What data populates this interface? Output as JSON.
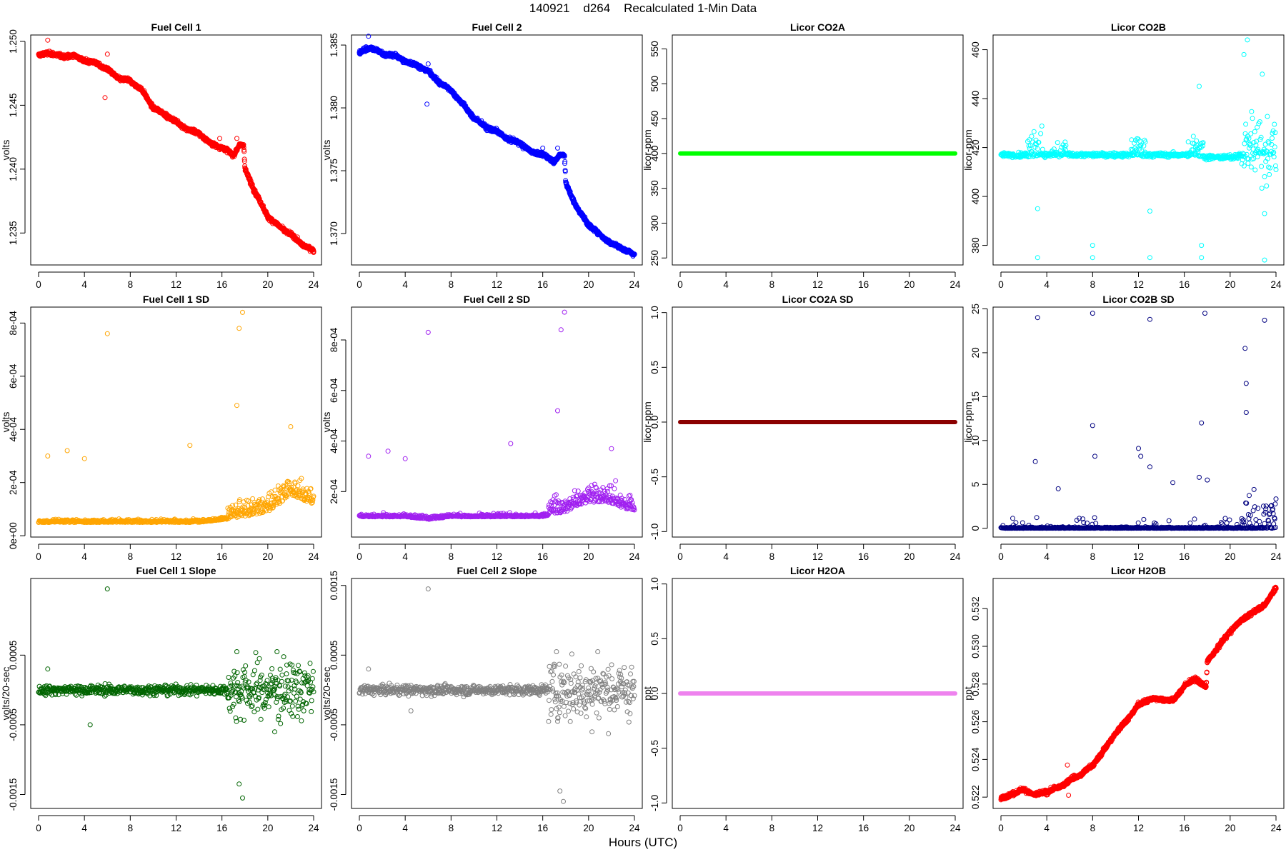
{
  "figure": {
    "title": "140921    d264    Recalculated 1-Min Data",
    "xlabel": "Hours (UTC)"
  },
  "chart_data": [
    {
      "type": "scatter",
      "title": "Fuel Cell 1",
      "xlabel": "",
      "ylabel": "volts",
      "xlim": [
        0,
        24
      ],
      "ylim": [
        1.2325,
        1.2505
      ],
      "xticks": [
        0,
        4,
        8,
        12,
        16,
        20,
        24
      ],
      "yticks": [
        "1.235",
        "1.240",
        "1.245",
        "1.250"
      ],
      "ytick_values": [
        1.235,
        1.24,
        1.245,
        1.25
      ],
      "color": "#ff0000",
      "series": [
        {
          "x": [
            0,
            1,
            2,
            3,
            4,
            5,
            6,
            7,
            8,
            9,
            10,
            11,
            12,
            13,
            14,
            15,
            16,
            17,
            17.5,
            17.9,
            18,
            19,
            20,
            21,
            22,
            23,
            24
          ],
          "y": [
            1.2489,
            1.2491,
            1.2488,
            1.2489,
            1.2485,
            1.2483,
            1.2478,
            1.2471,
            1.2469,
            1.2462,
            1.2448,
            1.2443,
            1.2437,
            1.2431,
            1.2428,
            1.242,
            1.2417,
            1.2411,
            1.2419,
            1.2418,
            1.24,
            1.238,
            1.2363,
            1.2355,
            1.2349,
            1.2341,
            1.2336
          ]
        }
      ],
      "outliers": [
        [
          0.8,
          1.2501
        ],
        [
          6,
          1.249
        ],
        [
          5.8,
          1.2456
        ],
        [
          15.8,
          1.2424
        ],
        [
          17.3,
          1.2424
        ]
      ]
    },
    {
      "type": "scatter",
      "title": "Fuel Cell 2",
      "xlabel": "",
      "ylabel": "volts",
      "xlim": [
        0,
        24
      ],
      "ylim": [
        1.3675,
        1.3858
      ],
      "xticks": [
        0,
        4,
        8,
        12,
        16,
        20,
        24
      ],
      "yticks": [
        "1.370",
        "1.375",
        "1.380",
        "1.385"
      ],
      "ytick_values": [
        1.37,
        1.375,
        1.38,
        1.385
      ],
      "color": "#0000ff",
      "series": [
        {
          "x": [
            0,
            1,
            2,
            3,
            4,
            5,
            6,
            7,
            8,
            9,
            10,
            11,
            12,
            13,
            14,
            15,
            16,
            17,
            17.5,
            17.9,
            18,
            19,
            20,
            21,
            22,
            23,
            24
          ],
          "y": [
            1.3844,
            1.3848,
            1.3843,
            1.3842,
            1.3837,
            1.3834,
            1.3829,
            1.382,
            1.3814,
            1.3803,
            1.3792,
            1.3785,
            1.3781,
            1.3775,
            1.3772,
            1.3765,
            1.3763,
            1.3757,
            1.3763,
            1.3762,
            1.374,
            1.372,
            1.3707,
            1.3699,
            1.3692,
            1.3688,
            1.3683
          ]
        }
      ],
      "outliers": [
        [
          0.8,
          1.3857
        ],
        [
          6,
          1.3835
        ],
        [
          5.9,
          1.3803
        ],
        [
          16,
          1.3768
        ],
        [
          17.3,
          1.3768
        ]
      ]
    },
    {
      "type": "scatter",
      "title": "Licor CO2A",
      "xlabel": "",
      "ylabel": "licor-ppm",
      "xlim": [
        0,
        24
      ],
      "ylim": [
        240,
        570
      ],
      "xticks": [
        0,
        4,
        8,
        12,
        16,
        20,
        24
      ],
      "yticks": [
        "250",
        "300",
        "350",
        "400",
        "450",
        "500",
        "550"
      ],
      "ytick_values": [
        250,
        300,
        350,
        400,
        450,
        500,
        550
      ],
      "color": "#00ff00",
      "series": [
        {
          "x": [
            0,
            24
          ],
          "y": [
            400,
            400
          ]
        }
      ]
    },
    {
      "type": "scatter",
      "title": "Licor CO2B",
      "xlabel": "",
      "ylabel": "licor-ppm",
      "xlim": [
        0,
        24
      ],
      "ylim": [
        372,
        466
      ],
      "xticks": [
        0,
        4,
        8,
        12,
        16,
        20,
        24
      ],
      "yticks": [
        "380",
        "400",
        "420",
        "440",
        "460"
      ],
      "ytick_values": [
        380,
        400,
        420,
        440,
        460
      ],
      "color": "#00ffff",
      "series": [
        {
          "x": [
            0,
            1,
            2,
            3,
            4,
            5,
            6,
            7,
            8,
            9,
            10,
            11,
            12,
            13,
            14,
            15,
            16,
            17,
            18,
            19,
            20,
            21,
            22,
            23,
            24
          ],
          "y": [
            417,
            417,
            417,
            417,
            417,
            417,
            417,
            417,
            417,
            417,
            417,
            417,
            417,
            417,
            417,
            417,
            417,
            417,
            416,
            416,
            416,
            417,
            418,
            418,
            418
          ]
        }
      ],
      "bursts": [
        [
          3,
          425
        ],
        [
          5,
          422
        ],
        [
          12,
          424
        ],
        [
          17,
          423
        ],
        [
          22,
          428
        ]
      ],
      "outliers": [
        [
          3.2,
          395
        ],
        [
          3.2,
          375
        ],
        [
          8,
          380
        ],
        [
          8,
          375
        ],
        [
          13,
          394
        ],
        [
          13,
          375
        ],
        [
          17.5,
          380
        ],
        [
          17.5,
          375
        ],
        [
          21.5,
          464
        ],
        [
          23,
          393
        ],
        [
          23,
          374
        ],
        [
          17.3,
          445
        ],
        [
          21.2,
          458
        ],
        [
          22.8,
          450
        ]
      ]
    },
    {
      "type": "scatter",
      "title": "Fuel Cell 1 SD",
      "xlabel": "",
      "ylabel": "volts",
      "xlim": [
        0,
        24
      ],
      "ylim": [
        -5e-06,
        0.00086
      ],
      "xticks": [
        0,
        4,
        8,
        12,
        16,
        20,
        24
      ],
      "yticks": [
        "0e+00",
        "2e-04",
        "4e-04",
        "6e-04",
        "8e-04"
      ],
      "ytick_values": [
        0,
        0.0002,
        0.0004,
        0.0006,
        0.0008
      ],
      "color": "#ffa500",
      "series": [
        {
          "x": [
            0,
            2,
            4,
            6,
            8,
            10,
            12,
            14,
            16,
            18,
            20,
            22,
            24
          ],
          "y": [
            5e-05,
            5e-05,
            5e-05,
            5e-05,
            5e-05,
            5e-05,
            5e-05,
            5e-05,
            6e-05,
            7e-05,
            9e-05,
            0.00015,
            0.00012
          ]
        }
      ],
      "outliers": [
        [
          6,
          0.00076
        ],
        [
          17.5,
          0.00078
        ],
        [
          17.8,
          0.00084
        ],
        [
          17.3,
          0.00049
        ],
        [
          0.8,
          0.0003
        ],
        [
          2.5,
          0.00032
        ],
        [
          4,
          0.00029
        ],
        [
          13.2,
          0.00034
        ],
        [
          22,
          0.00041
        ]
      ]
    },
    {
      "type": "scatter",
      "title": "Fuel Cell 2 SD",
      "xlabel": "",
      "ylabel": "volts",
      "xlim": [
        0,
        24
      ],
      "ylim": [
        2e-05,
        0.00093
      ],
      "xticks": [
        0,
        4,
        8,
        12,
        16,
        20,
        24
      ],
      "yticks": [
        "2e-04",
        "4e-04",
        "6e-04",
        "8e-04"
      ],
      "ytick_values": [
        0.0002,
        0.0004,
        0.0006,
        0.0008
      ],
      "color": "#a020f0",
      "series": [
        {
          "x": [
            0,
            2,
            4,
            6,
            8,
            10,
            12,
            14,
            16,
            18,
            20,
            22,
            24
          ],
          "y": [
            0.0001,
            0.0001,
            0.0001,
            9e-05,
            0.0001,
            0.0001,
            0.0001,
            0.0001,
            0.0001,
            0.00012,
            0.00016,
            0.00015,
            0.00012
          ]
        }
      ],
      "outliers": [
        [
          6,
          0.00083
        ],
        [
          17.6,
          0.00084
        ],
        [
          17.9,
          0.00091
        ],
        [
          17.3,
          0.00052
        ],
        [
          0.8,
          0.00034
        ],
        [
          2.5,
          0.00036
        ],
        [
          4,
          0.00033
        ],
        [
          13.2,
          0.00039
        ],
        [
          22,
          0.00037
        ]
      ]
    },
    {
      "type": "scatter",
      "title": "Licor CO2A SD",
      "xlabel": "",
      "ylabel": "licor-ppm",
      "xlim": [
        0,
        24
      ],
      "ylim": [
        -1.05,
        1.05
      ],
      "xticks": [
        0,
        4,
        8,
        12,
        16,
        20,
        24
      ],
      "yticks": [
        "-1.0",
        "-0.5",
        "0.0",
        "0.5",
        "1.0"
      ],
      "ytick_values": [
        -1,
        -0.5,
        0,
        0.5,
        1
      ],
      "color": "#8b0000",
      "series": [
        {
          "x": [
            0,
            24
          ],
          "y": [
            0,
            0
          ]
        }
      ]
    },
    {
      "type": "scatter",
      "title": "Licor CO2B SD",
      "xlabel": "",
      "ylabel": "licor-ppm",
      "xlim": [
        0,
        24
      ],
      "ylim": [
        -1,
        25.2
      ],
      "xticks": [
        0,
        4,
        8,
        12,
        16,
        20,
        24
      ],
      "yticks": [
        "0",
        "5",
        "10",
        "15",
        "20",
        "25"
      ],
      "ytick_values": [
        0,
        5,
        10,
        15,
        20,
        25
      ],
      "color": "#000080",
      "series": [
        {
          "x": [
            0,
            24
          ],
          "y": [
            0,
            0
          ]
        }
      ],
      "outliers": [
        [
          3.2,
          24
        ],
        [
          8,
          24.5
        ],
        [
          13,
          23.8
        ],
        [
          17.8,
          24.5
        ],
        [
          23,
          23.7
        ],
        [
          21.3,
          20.5
        ],
        [
          21.4,
          16.5
        ],
        [
          21.4,
          13.2
        ],
        [
          8,
          11.7
        ],
        [
          8.2,
          8.2
        ],
        [
          12,
          9.1
        ],
        [
          12.2,
          8.2
        ],
        [
          3,
          7.6
        ],
        [
          13,
          7
        ],
        [
          17.5,
          12
        ],
        [
          17.3,
          5.8
        ],
        [
          18,
          5.5
        ],
        [
          15,
          5.2
        ],
        [
          5,
          4.5
        ]
      ]
    },
    {
      "type": "scatter",
      "title": "Fuel Cell 1 Slope",
      "xlabel": "",
      "ylabel": "volts/20-sec",
      "xlim": [
        0,
        24
      ],
      "ylim": [
        -0.0017,
        0.0016
      ],
      "xticks": [
        0,
        4,
        8,
        12,
        16,
        20,
        24
      ],
      "yticks": [
        "-0.0015",
        "-0.0005",
        "0.0005"
      ],
      "ytick_values": [
        -0.0015,
        -0.0005,
        0.0005
      ],
      "color": "#006400",
      "series": [
        {
          "x": [
            0,
            24
          ],
          "y": [
            0,
            0
          ]
        }
      ],
      "outliers": [
        [
          6,
          0.00145
        ],
        [
          17.5,
          -0.00135
        ],
        [
          17.8,
          -0.00155
        ],
        [
          17.3,
          0.00055
        ],
        [
          20.8,
          0.00055
        ],
        [
          17.2,
          -0.0004
        ],
        [
          20.6,
          -0.0006
        ],
        [
          0.8,
          0.0003
        ],
        [
          4.5,
          -0.0005
        ]
      ]
    },
    {
      "type": "scatter",
      "title": "Fuel Cell 2 Slope",
      "xlabel": "",
      "ylabel": "volts/20-sec",
      "xlim": [
        0,
        24
      ],
      "ylim": [
        -0.0017,
        0.0016
      ],
      "xticks": [
        0,
        4,
        8,
        12,
        16,
        20,
        24
      ],
      "yticks": [
        "-0.0015",
        "-0.0005",
        "0.0005",
        "0.0015"
      ],
      "ytick_values": [
        -0.0015,
        -0.0005,
        0.0005,
        0.0015
      ],
      "color": "#808080",
      "series": [
        {
          "x": [
            0,
            24
          ],
          "y": [
            0,
            0
          ]
        }
      ],
      "outliers": [
        [
          6,
          0.00145
        ],
        [
          17.5,
          -0.00145
        ],
        [
          17.8,
          -0.0016
        ],
        [
          17.2,
          0.00055
        ],
        [
          20.8,
          0.00055
        ],
        [
          20.3,
          -0.0006
        ],
        [
          17.3,
          -0.00045
        ],
        [
          0.8,
          0.0003
        ],
        [
          4.5,
          -0.0003
        ]
      ]
    },
    {
      "type": "scatter",
      "title": "Licor H2OA",
      "xlabel": "",
      "ylabel": "ppt",
      "xlim": [
        0,
        24
      ],
      "ylim": [
        -1.05,
        1.05
      ],
      "xticks": [
        0,
        4,
        8,
        12,
        16,
        20,
        24
      ],
      "yticks": [
        "-1.0",
        "-0.5",
        "0.0",
        "0.5",
        "1.0"
      ],
      "ytick_values": [
        -1,
        -0.5,
        0,
        0.5,
        1
      ],
      "color": "#ee82ee",
      "series": [
        {
          "x": [
            0,
            24
          ],
          "y": [
            0,
            0
          ]
        }
      ]
    },
    {
      "type": "scatter",
      "title": "Licor H2OB",
      "xlabel": "",
      "ylabel": "ppt",
      "xlim": [
        0,
        24
      ],
      "ylim": [
        0.5214,
        0.5336
      ],
      "xticks": [
        0,
        4,
        8,
        12,
        16,
        20,
        24
      ],
      "yticks": [
        "0.522",
        "0.524",
        "0.526",
        "0.528",
        "0.530",
        "0.532"
      ],
      "ytick_values": [
        0.522,
        0.524,
        0.526,
        0.528,
        0.53,
        0.532
      ],
      "color": "#ff0000",
      "series": [
        {
          "x": [
            0,
            1,
            2,
            3,
            4,
            5,
            6,
            7,
            8,
            9,
            10,
            11,
            12,
            13,
            14,
            15,
            16,
            17,
            17.9,
            18,
            19,
            20,
            21,
            22,
            23,
            24
          ],
          "y": [
            0.5219,
            0.5222,
            0.5224,
            0.5221,
            0.5223,
            0.5225,
            0.5229,
            0.5232,
            0.5237,
            0.5245,
            0.5254,
            0.5261,
            0.5269,
            0.5272,
            0.5272,
            0.5271,
            0.5279,
            0.5283,
            0.5278,
            0.5292,
            0.53,
            0.5308,
            0.5314,
            0.5318,
            0.5322,
            0.5331
          ]
        }
      ],
      "outliers": [
        [
          5.8,
          0.5237
        ],
        [
          5.9,
          0.5221
        ]
      ]
    }
  ]
}
